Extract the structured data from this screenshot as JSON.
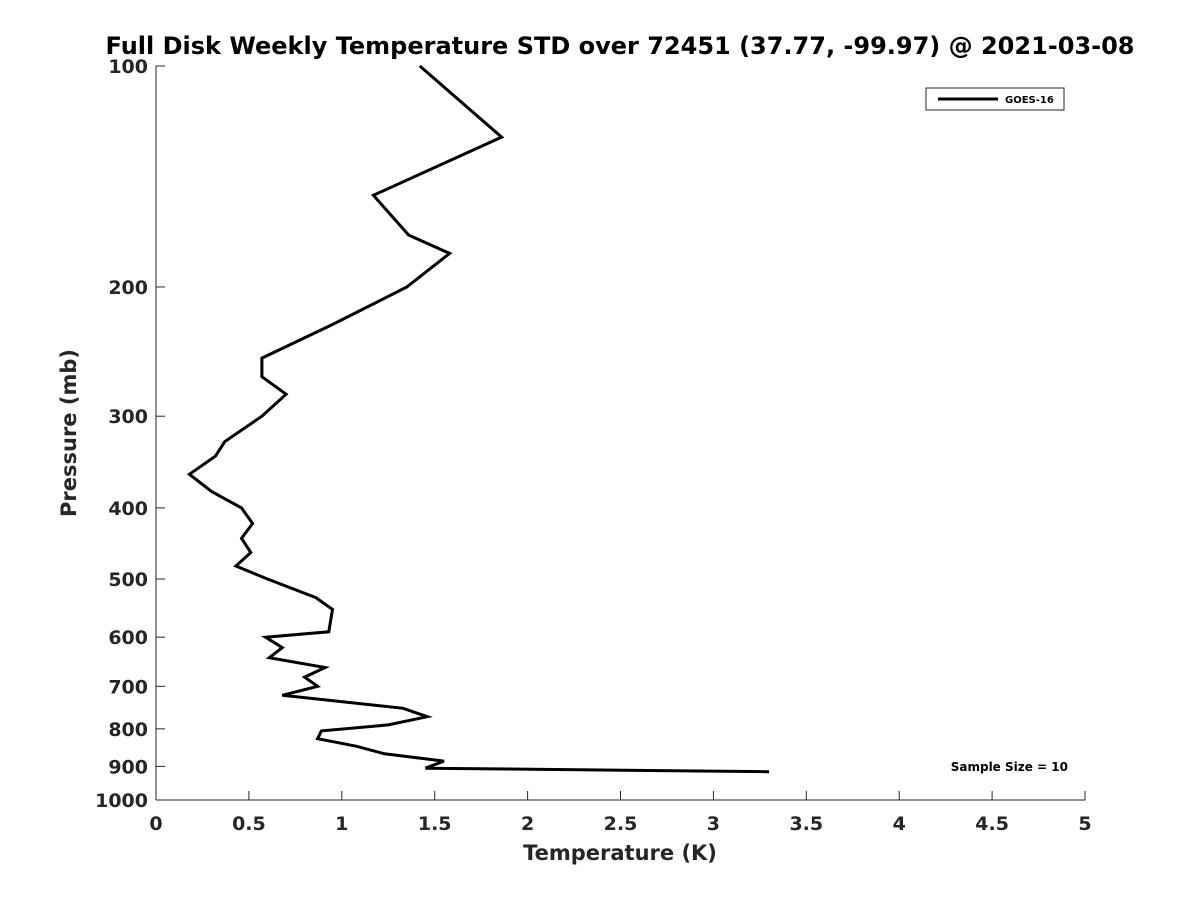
{
  "chart_data": {
    "type": "line",
    "title": "Full Disk Weekly Temperature STD over 72451 (37.77, -99.97) @ 2021-03-08",
    "xlabel": "Temperature (K)",
    "ylabel": "Pressure (mb)",
    "xlim": [
      0,
      5
    ],
    "ylim": [
      100,
      1000
    ],
    "y_scale": "log",
    "y_reversed": true,
    "x_ticks": [
      "0",
      "0.5",
      "1",
      "1.5",
      "2",
      "2.5",
      "3",
      "3.5",
      "4",
      "4.5",
      "5"
    ],
    "y_ticks": [
      "100",
      "200",
      "300",
      "400",
      "500",
      "600",
      "700",
      "800",
      "900",
      "1000"
    ],
    "grid": false,
    "legend_position": "top-right",
    "annotation": "Sample Size = 10",
    "series": [
      {
        "name": "GOES-16",
        "color": "#000000",
        "points": [
          [
            1.42,
            100
          ],
          [
            1.86,
            125
          ],
          [
            1.17,
            150
          ],
          [
            1.36,
            170
          ],
          [
            1.58,
            180
          ],
          [
            1.35,
            200
          ],
          [
            0.95,
            225
          ],
          [
            0.57,
            250
          ],
          [
            0.57,
            265
          ],
          [
            0.7,
            280
          ],
          [
            0.57,
            300
          ],
          [
            0.37,
            325
          ],
          [
            0.32,
            340
          ],
          [
            0.18,
            360
          ],
          [
            0.3,
            380
          ],
          [
            0.46,
            400
          ],
          [
            0.52,
            420
          ],
          [
            0.46,
            440
          ],
          [
            0.51,
            460
          ],
          [
            0.43,
            480
          ],
          [
            0.6,
            500
          ],
          [
            0.86,
            530
          ],
          [
            0.95,
            550
          ],
          [
            0.93,
            590
          ],
          [
            0.59,
            600
          ],
          [
            0.68,
            620
          ],
          [
            0.61,
            640
          ],
          [
            0.91,
            660
          ],
          [
            0.8,
            680
          ],
          [
            0.87,
            700
          ],
          [
            0.68,
            720
          ],
          [
            1.33,
            750
          ],
          [
            1.46,
            770
          ],
          [
            1.25,
            790
          ],
          [
            0.89,
            805
          ],
          [
            0.87,
            825
          ],
          [
            1.08,
            845
          ],
          [
            1.23,
            865
          ],
          [
            1.55,
            885
          ],
          [
            1.45,
            905
          ],
          [
            3.3,
            915
          ]
        ]
      }
    ]
  }
}
